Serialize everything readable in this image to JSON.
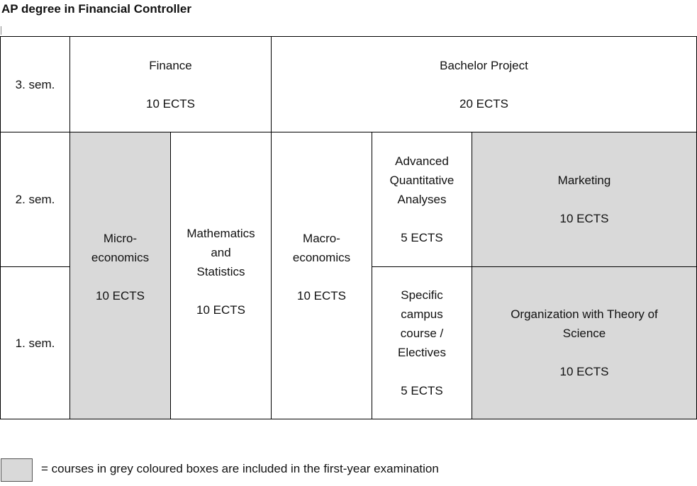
{
  "title": "AP degree in Financial Controller",
  "semesters": {
    "s3": "3. sem.",
    "s2": "2. sem.",
    "s1": "1. sem."
  },
  "courses": {
    "finance": {
      "name": "Finance",
      "ects": "10 ECTS"
    },
    "bachelor": {
      "name": "Bachelor Project",
      "ects": "20 ECTS"
    },
    "micro": {
      "name": "Micro-\neconomics",
      "ects": "10 ECTS"
    },
    "math": {
      "name": "Mathematics\nand\nStatistics",
      "ects": "10 ECTS"
    },
    "macro": {
      "name": "Macro-\neconomics",
      "ects": "10 ECTS"
    },
    "advanced": {
      "name": "Advanced\nQuantitative\nAnalyses",
      "ects": "5 ECTS"
    },
    "marketing": {
      "name": "Marketing",
      "ects": "10 ECTS"
    },
    "specific": {
      "name": "Specific\ncampus\ncourse /\nElectives",
      "ects": "5 ECTS"
    },
    "organization": {
      "name": "Organization with Theory of\nScience",
      "ects": "10 ECTS"
    }
  },
  "legend": {
    "text": "= courses in grey coloured boxes are included in the first-year examination",
    "grey_color": "#d9d9d9"
  }
}
